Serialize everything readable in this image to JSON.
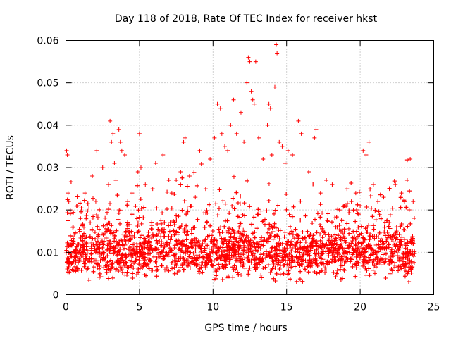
{
  "chart_data": {
    "type": "scatter",
    "title": "Day 118 of 2018, Rate Of TEC Index for receiver hkst",
    "xlabel": "GPS time / hours",
    "ylabel": "ROTI / TECUs",
    "xlim": [
      0,
      25
    ],
    "ylim": [
      0,
      0.06
    ],
    "xticks": [
      0,
      5,
      10,
      15,
      20,
      25
    ],
    "xtick_labels": [
      "0",
      "5",
      "10",
      "15",
      "20",
      "25"
    ],
    "yticks": [
      0,
      0.01,
      0.02,
      0.03,
      0.04,
      0.05,
      0.06
    ],
    "ytick_labels": [
      "0",
      "0.01",
      "0.02",
      "0.03",
      "0.04",
      "0.05",
      "0.06"
    ],
    "grid": true,
    "marker": "+",
    "marker_color": "#ff0000",
    "series": [
      {
        "name": "ROTI",
        "color": "#ff0000",
        "typical_range": [
          0.005,
          0.015
        ],
        "x": [
          0.05,
          0.1,
          0.15,
          0.2,
          0.3,
          0.5,
          0.8,
          1.0,
          1.3,
          1.8,
          2.1,
          2.5,
          2.9,
          3.0,
          3.1,
          3.2,
          3.3,
          3.4,
          3.6,
          3.7,
          3.8,
          4.0,
          4.2,
          4.5,
          4.9,
          5.0,
          5.1,
          5.4,
          5.9,
          6.1,
          6.6,
          7.0,
          7.2,
          7.5,
          7.8,
          8.0,
          8.1,
          8.4,
          8.8,
          9.1,
          9.5,
          9.8,
          10.1,
          10.3,
          10.5,
          10.6,
          10.8,
          11.0,
          11.2,
          11.4,
          11.6,
          11.9,
          12.1,
          12.3,
          12.4,
          12.5,
          12.6,
          12.7,
          12.8,
          12.9,
          13.1,
          13.4,
          13.7,
          13.8,
          13.9,
          14.0,
          14.2,
          14.3,
          14.35,
          14.5,
          14.7,
          14.9,
          15.1,
          15.4,
          15.8,
          16.0,
          16.5,
          16.9,
          17.0,
          17.3,
          17.7,
          18.1,
          18.6,
          19.1,
          19.4,
          19.7,
          20.0,
          20.2,
          20.4,
          20.6,
          20.9,
          21.2,
          21.6,
          22.0,
          22.4,
          22.8,
          23.2,
          23.4,
          23.6
        ],
        "y": [
          0.034,
          0.033,
          0.024,
          0.022,
          0.02,
          0.016,
          0.021,
          0.018,
          0.024,
          0.028,
          0.034,
          0.03,
          0.026,
          0.041,
          0.036,
          0.038,
          0.031,
          0.027,
          0.039,
          0.036,
          0.034,
          0.033,
          0.022,
          0.024,
          0.029,
          0.038,
          0.03,
          0.026,
          0.025,
          0.031,
          0.033,
          0.027,
          0.024,
          0.027,
          0.029,
          0.036,
          0.037,
          0.028,
          0.023,
          0.034,
          0.025,
          0.032,
          0.037,
          0.045,
          0.044,
          0.038,
          0.035,
          0.034,
          0.04,
          0.046,
          0.038,
          0.043,
          0.036,
          0.05,
          0.056,
          0.055,
          0.048,
          0.046,
          0.045,
          0.055,
          0.037,
          0.032,
          0.04,
          0.045,
          0.044,
          0.033,
          0.049,
          0.059,
          0.057,
          0.036,
          0.035,
          0.031,
          0.034,
          0.033,
          0.041,
          0.038,
          0.029,
          0.037,
          0.039,
          0.024,
          0.027,
          0.026,
          0.02,
          0.025,
          0.022,
          0.024,
          0.021,
          0.034,
          0.033,
          0.036,
          0.026,
          0.022,
          0.023,
          0.025,
          0.026,
          0.024,
          0.027,
          0.032,
          0.022
        ]
      }
    ]
  }
}
